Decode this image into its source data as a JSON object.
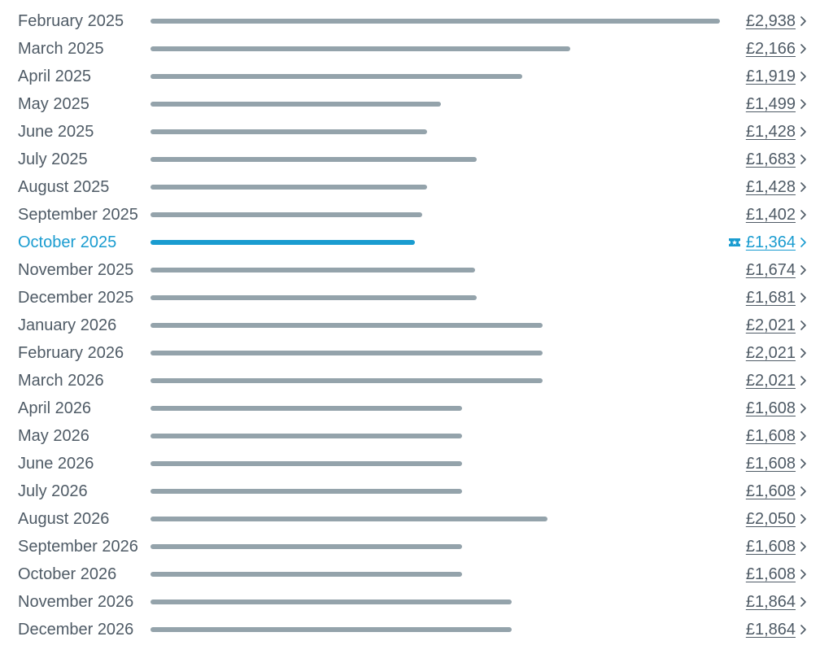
{
  "colors": {
    "text": "#4f5b66",
    "bar": "#94a3ab",
    "accent": "#1a9cd0"
  },
  "scale_max": 2938,
  "icons": {
    "chevron": "chevron-right-icon",
    "deal": "ticket-star-icon"
  },
  "rows": [
    {
      "month": "February 2025",
      "price_label": "£2,938",
      "value": 2938,
      "selected": false
    },
    {
      "month": "March 2025",
      "price_label": "£2,166",
      "value": 2166,
      "selected": false
    },
    {
      "month": "April 2025",
      "price_label": "£1,919",
      "value": 1919,
      "selected": false
    },
    {
      "month": "May 2025",
      "price_label": "£1,499",
      "value": 1499,
      "selected": false
    },
    {
      "month": "June 2025",
      "price_label": "£1,428",
      "value": 1428,
      "selected": false
    },
    {
      "month": "July 2025",
      "price_label": "£1,683",
      "value": 1683,
      "selected": false
    },
    {
      "month": "August 2025",
      "price_label": "£1,428",
      "value": 1428,
      "selected": false
    },
    {
      "month": "September 2025",
      "price_label": "£1,402",
      "value": 1402,
      "selected": false
    },
    {
      "month": "October 2025",
      "price_label": "£1,364",
      "value": 1364,
      "selected": true
    },
    {
      "month": "November 2025",
      "price_label": "£1,674",
      "value": 1674,
      "selected": false
    },
    {
      "month": "December 2025",
      "price_label": "£1,681",
      "value": 1681,
      "selected": false
    },
    {
      "month": "January 2026",
      "price_label": "£2,021",
      "value": 2021,
      "selected": false
    },
    {
      "month": "February 2026",
      "price_label": "£2,021",
      "value": 2021,
      "selected": false
    },
    {
      "month": "March 2026",
      "price_label": "£2,021",
      "value": 2021,
      "selected": false
    },
    {
      "month": "April 2026",
      "price_label": "£1,608",
      "value": 1608,
      "selected": false
    },
    {
      "month": "May 2026",
      "price_label": "£1,608",
      "value": 1608,
      "selected": false
    },
    {
      "month": "June 2026",
      "price_label": "£1,608",
      "value": 1608,
      "selected": false
    },
    {
      "month": "July 2026",
      "price_label": "£1,608",
      "value": 1608,
      "selected": false
    },
    {
      "month": "August 2026",
      "price_label": "£2,050",
      "value": 2050,
      "selected": false
    },
    {
      "month": "September 2026",
      "price_label": "£1,608",
      "value": 1608,
      "selected": false
    },
    {
      "month": "October 2026",
      "price_label": "£1,608",
      "value": 1608,
      "selected": false
    },
    {
      "month": "November 2026",
      "price_label": "£1,864",
      "value": 1864,
      "selected": false
    },
    {
      "month": "December 2026",
      "price_label": "£1,864",
      "value": 1864,
      "selected": false
    }
  ]
}
